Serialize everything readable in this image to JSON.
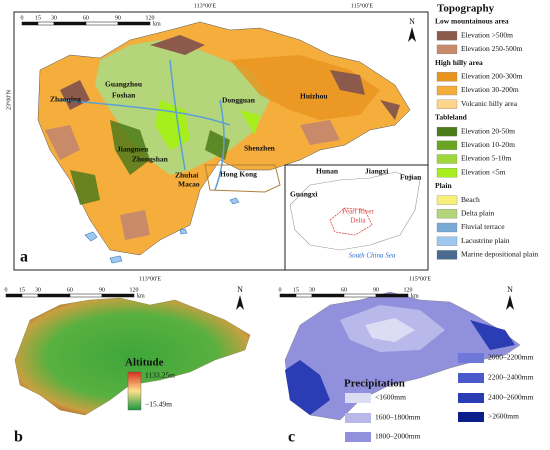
{
  "panel_a": {
    "label": "a",
    "north": "N",
    "scale": [
      0,
      15,
      30,
      60,
      90,
      120
    ],
    "scale_unit": "km",
    "coords": [
      "113°00′E",
      "115°00′E",
      "23°00′N"
    ],
    "cities": [
      "Zhaoqing",
      "Guangzhou",
      "Foshan",
      "Dongguan",
      "Huizhou",
      "Jiangmen",
      "Zhongshan",
      "Shenzhen",
      "Zhuhai",
      "Macao",
      "Hong Kong"
    ],
    "inset": {
      "provinces": [
        "Hunan",
        "Jiangxi",
        "Fujian",
        "Guangxi"
      ],
      "region": [
        "Pearl River",
        "Delta"
      ],
      "sea": "South China Sea"
    }
  },
  "legend": {
    "title": "Topography",
    "groups": [
      {
        "name": "Low mountainous area",
        "items": [
          {
            "label": "Elevation >500m",
            "color": "#8b5a4a"
          },
          {
            "label": "Elevation 250-500m",
            "color": "#c98a6a"
          }
        ]
      },
      {
        "name": "High hilly area",
        "items": [
          {
            "label": "Elevation 200-300m",
            "color": "#e8941e"
          },
          {
            "label": "Elevation 30-200m",
            "color": "#f5ad3c"
          },
          {
            "label": "Volcanic hilly area",
            "color": "#fcd48a"
          }
        ]
      },
      {
        "name": "Tableland",
        "items": [
          {
            "label": "Elevation 20-50m",
            "color": "#4d7a1a"
          },
          {
            "label": "Elevation 10-20m",
            "color": "#6aa522"
          },
          {
            "label": "Elevation 5-10m",
            "color": "#9fd83a"
          },
          {
            "label": "Elevation <5m",
            "color": "#a6ee1c"
          }
        ]
      },
      {
        "name": "Plain",
        "items": [
          {
            "label": "Beach",
            "color": "#f8f07a"
          },
          {
            "label": "Delta plain",
            "color": "#b5d57a"
          },
          {
            "label": "Fluvial terrace",
            "color": "#7aaad8"
          },
          {
            "label": "Lacustrine plain",
            "color": "#9ec8f0"
          },
          {
            "label": "Marine depositional plain",
            "color": "#4a6a90"
          }
        ]
      }
    ]
  },
  "panel_b": {
    "label": "b",
    "north": "N",
    "scale": [
      0,
      15,
      30,
      60,
      90,
      120
    ],
    "scale_unit": "km",
    "coord": "113°00′E",
    "legend_title": "Altitude",
    "max": "1133.25m",
    "min": "−15.49m",
    "colors": [
      "#d7301f",
      "#fee08b",
      "#1a9641"
    ]
  },
  "panel_c": {
    "label": "c",
    "north": "N",
    "scale": [
      0,
      15,
      30,
      60,
      90,
      120
    ],
    "scale_unit": "km",
    "coord": "115°00′E",
    "legend_title": "Precipitation",
    "items": [
      {
        "label": "<1600mm",
        "color": "#dcdcf5"
      },
      {
        "label": "1600–1800mm",
        "color": "#b8b8ea"
      },
      {
        "label": "1800–2000mm",
        "color": "#9090dd"
      },
      {
        "label": "2000–2200mm",
        "color": "#6f78d8"
      },
      {
        "label": "2200–2400mm",
        "color": "#4a5acb"
      },
      {
        "label": "2400–2600mm",
        "color": "#2a3db5"
      },
      {
        "label": ">2600mm",
        "color": "#0a1f8a"
      }
    ]
  }
}
